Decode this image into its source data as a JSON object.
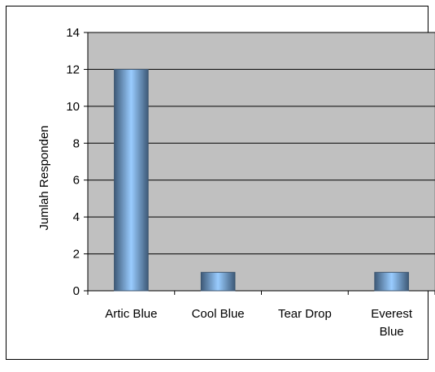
{
  "chart_data": {
    "type": "bar",
    "title": "",
    "xlabel": "",
    "ylabel": "Jumlah Responden",
    "categories": [
      "Artic Blue",
      "Cool Blue",
      "Tear Drop",
      "Everest Blue"
    ],
    "category_label_lines": [
      [
        "Artic Blue"
      ],
      [
        "Cool Blue"
      ],
      [
        "Tear Drop"
      ],
      [
        "Everest",
        "Blue"
      ]
    ],
    "values": [
      12,
      1,
      0,
      1
    ],
    "ylim": [
      0,
      14
    ],
    "yticks": [
      0,
      2,
      4,
      6,
      8,
      10,
      12,
      14
    ],
    "grid": true,
    "legend": "none",
    "colors": {
      "plot_background": "#c0c0c0",
      "bar_edge": "#3d5670",
      "bar_dark": "#3e5a78",
      "bar_light": "#99ccff",
      "gridline": "#000000"
    }
  }
}
